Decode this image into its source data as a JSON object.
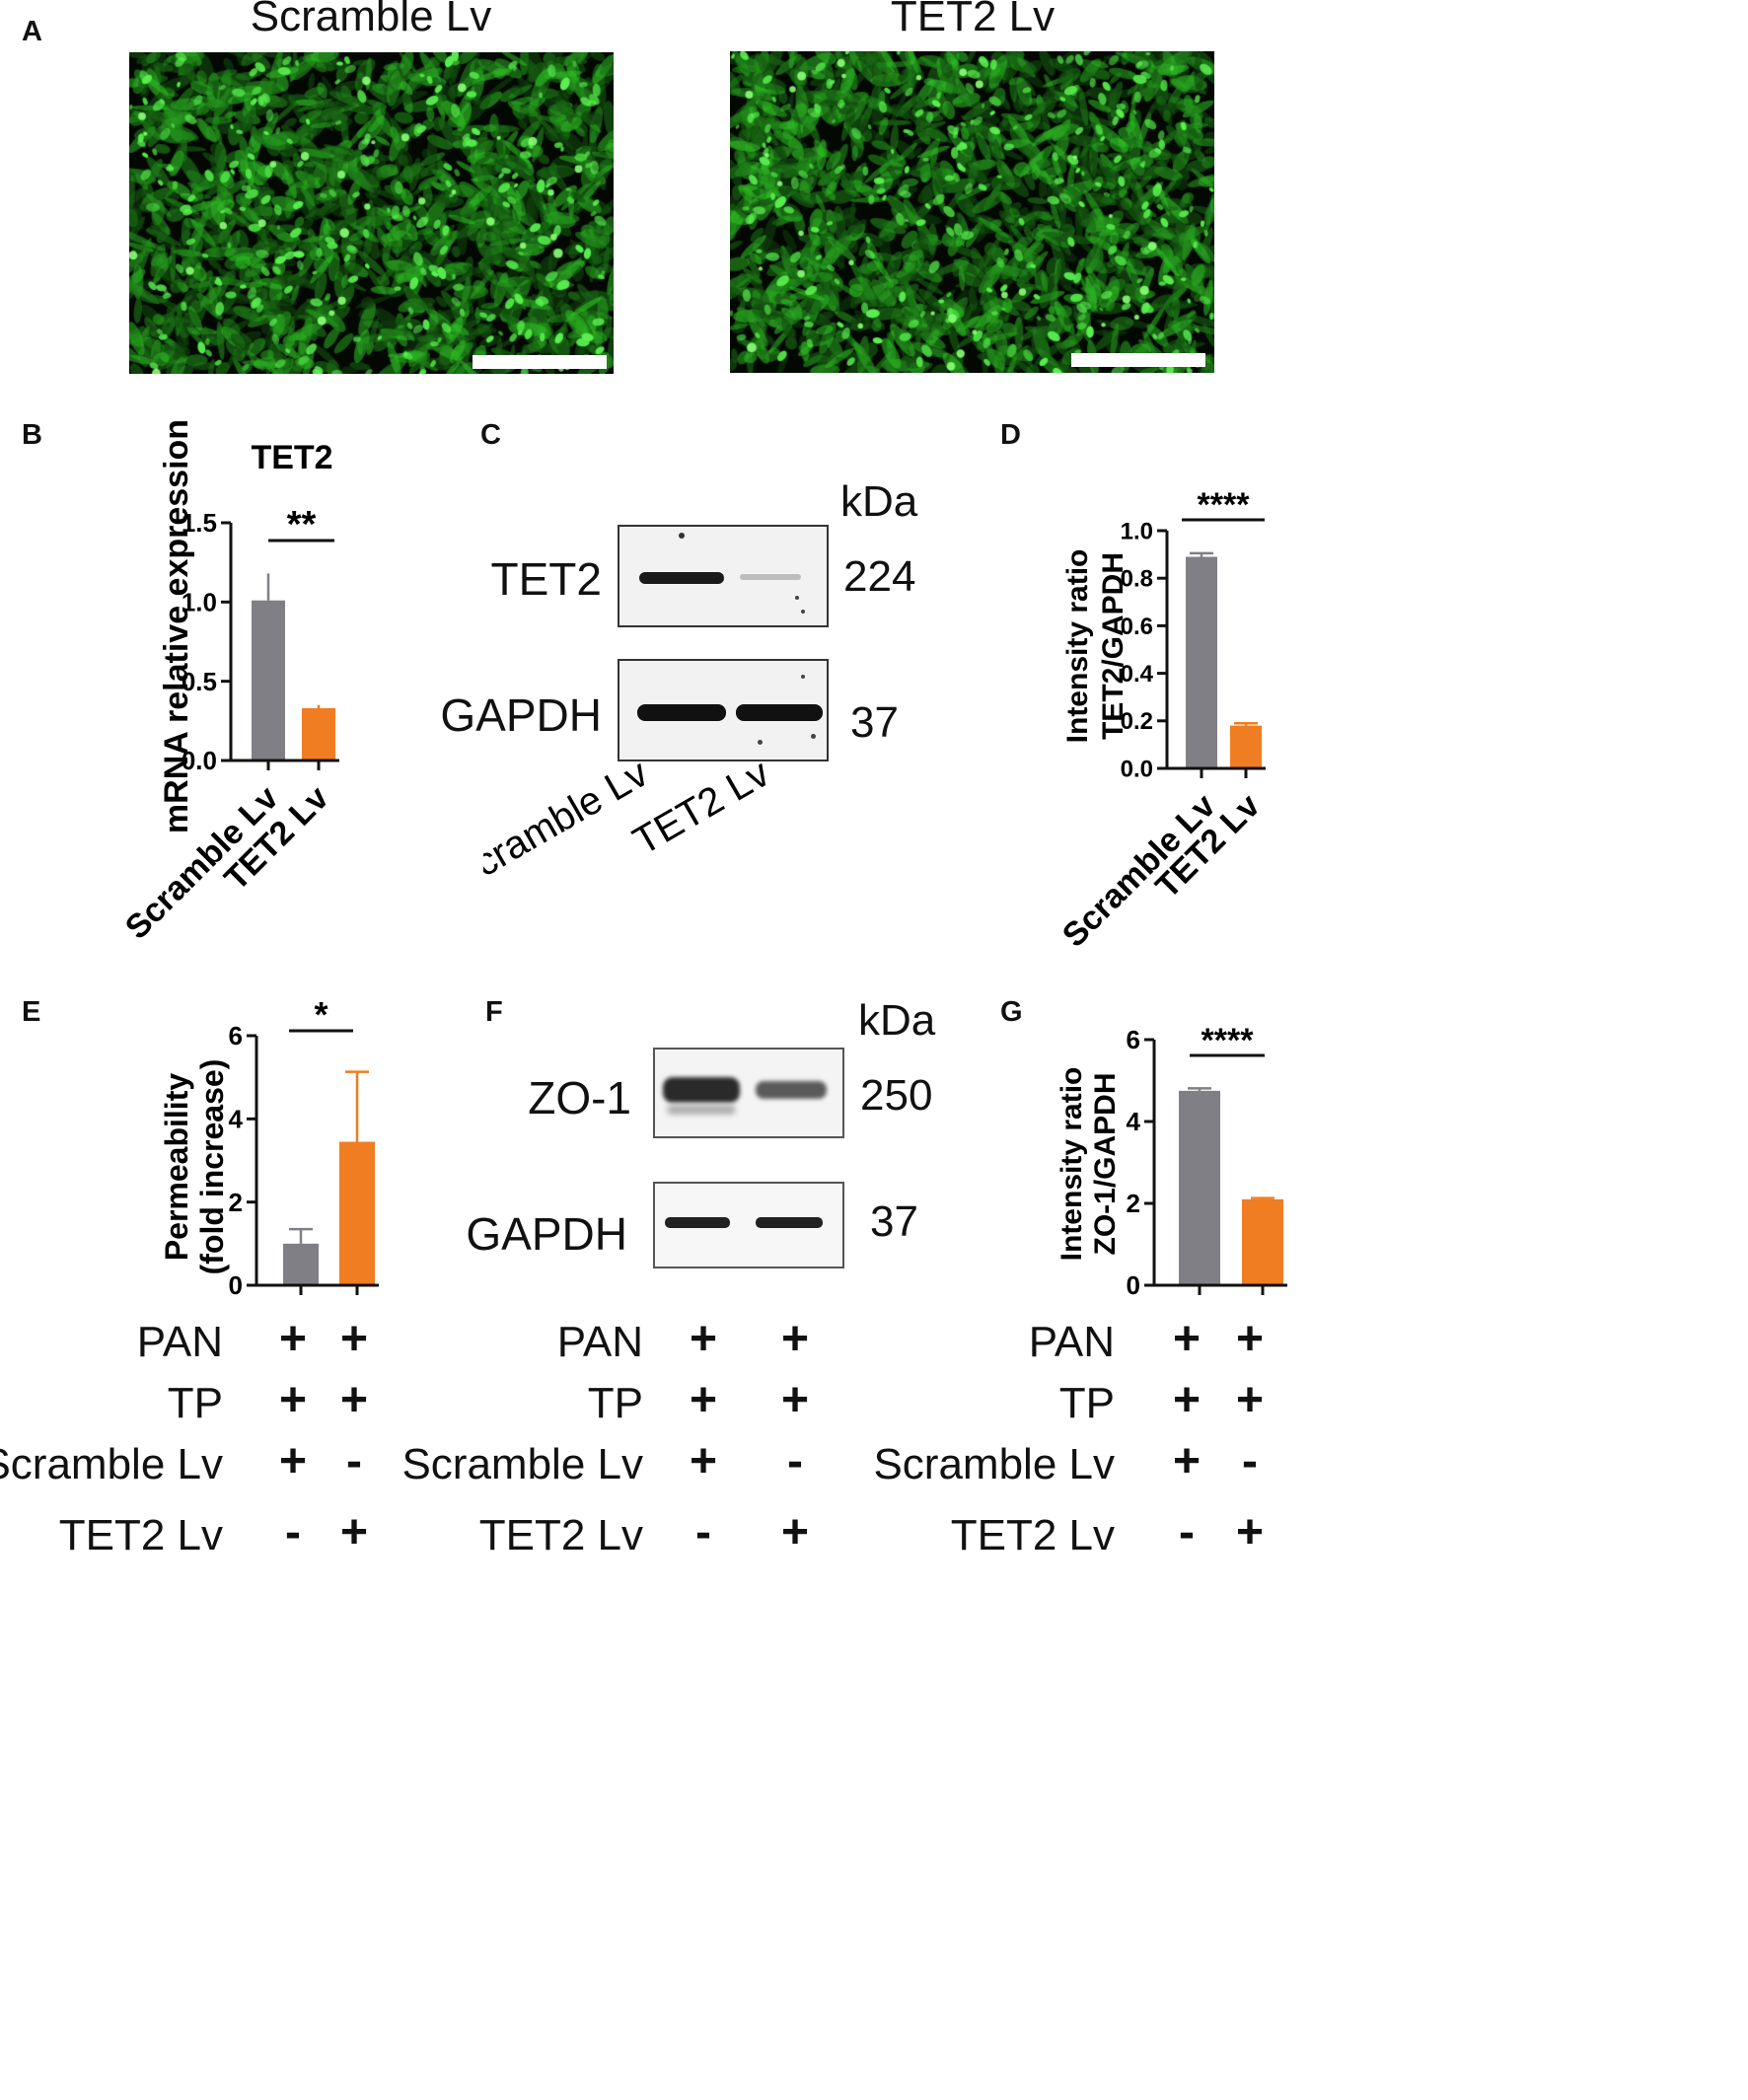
{
  "panels": {
    "A": "A",
    "B": "B",
    "C": "C",
    "D": "D",
    "E": "E",
    "F": "F",
    "G": "G"
  },
  "micrographs": {
    "left_title": "Scramble Lv",
    "right_title": "TET2 Lv"
  },
  "colors": {
    "gray_bar": "#7f7f85",
    "orange_bar": "#f07d22",
    "fluorescence": "#2ed82a"
  },
  "chart_data": [
    {
      "id": "B",
      "type": "bar",
      "title": "TET2",
      "ylabel": "mRNA relative expression",
      "categories": [
        "Scramble Lv",
        "TET2 Lv"
      ],
      "values": [
        1.01,
        0.33
      ],
      "errors": [
        0.17,
        0.02
      ],
      "ylim": [
        0,
        1.5
      ],
      "yticks": [
        "0.0",
        "0.5",
        "1.0",
        "1.5"
      ],
      "significance": "**"
    },
    {
      "id": "D",
      "type": "bar",
      "ylabel": [
        "Intensity ratio",
        "TET2/GAPDH"
      ],
      "categories": [
        "Scramble Lv",
        "TET2 Lv"
      ],
      "values": [
        0.89,
        0.18
      ],
      "errors": [
        0.015,
        0.01
      ],
      "ylim": [
        0,
        1.0
      ],
      "yticks": [
        "0.0",
        "0.2",
        "0.4",
        "0.6",
        "0.8",
        "1.0"
      ],
      "significance": "****"
    },
    {
      "id": "E",
      "type": "bar",
      "ylabel": [
        "Permeability",
        "(fold increase)"
      ],
      "values": [
        1.0,
        3.45
      ],
      "errors": [
        0.35,
        1.68
      ],
      "ylim": [
        0,
        6
      ],
      "yticks": [
        "0",
        "2",
        "4",
        "6"
      ],
      "significance": "*"
    },
    {
      "id": "G",
      "type": "bar",
      "ylabel": [
        "Intensity ratio",
        "ZO-1/GAPDH"
      ],
      "values": [
        4.75,
        2.1
      ],
      "errors": [
        0.06,
        0.03
      ],
      "ylim": [
        0,
        6
      ],
      "yticks": [
        "0",
        "2",
        "4",
        "6"
      ],
      "significance": "****"
    }
  ],
  "blots": {
    "C": {
      "kda": "kDa",
      "rows": [
        {
          "label": "TET2",
          "size": "224"
        },
        {
          "label": "GAPDH",
          "size": "37"
        }
      ],
      "lanes": [
        "Scramble Lv",
        "TET2 Lv"
      ]
    },
    "F": {
      "kda": "kDa",
      "rows": [
        {
          "label": "ZO-1",
          "size": "250"
        },
        {
          "label": "GAPDH",
          "size": "37"
        }
      ]
    }
  },
  "conditions": {
    "rows": [
      "PAN",
      "TP",
      "Scramble Lv",
      "TET2 Lv"
    ],
    "symbols": [
      [
        "+",
        "+"
      ],
      [
        "+",
        "+"
      ],
      [
        "+",
        "-"
      ],
      [
        "-",
        "+"
      ]
    ]
  }
}
